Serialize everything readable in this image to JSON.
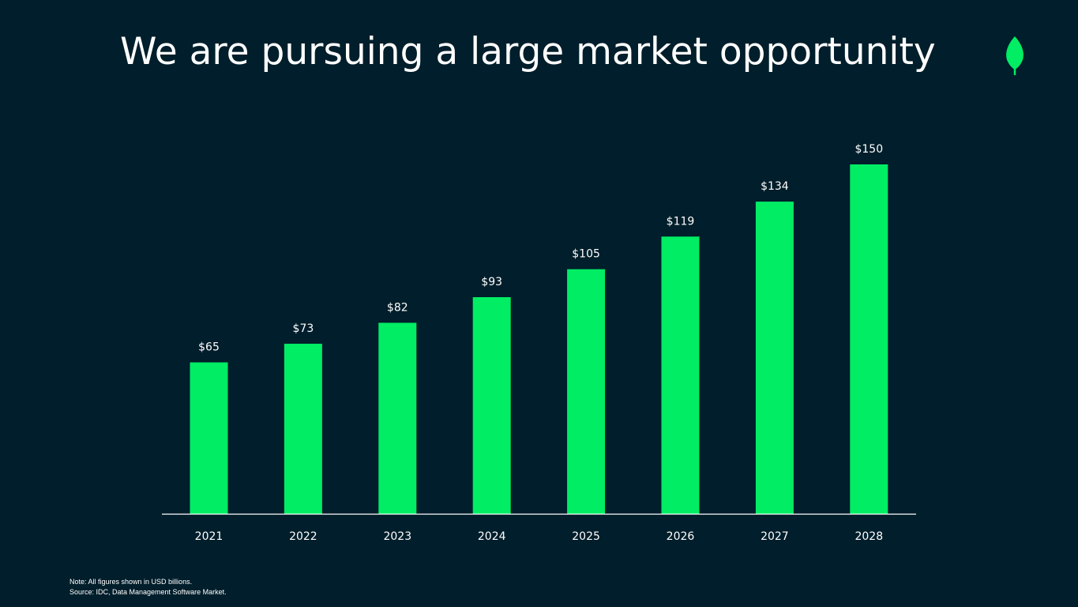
{
  "slide": {
    "title": "We are pursuing a large market opportunity",
    "logo_icon": "leaf-icon",
    "footnote": {
      "note": "Note: All figures shown in USD billions.",
      "source": "Source: IDC, Data Management Software Market."
    }
  },
  "colors": {
    "background": "#001e2b",
    "bar": "#00ed64",
    "text": "#ffffff",
    "leaf": "#00ed64"
  },
  "chart_data": {
    "type": "bar",
    "categories": [
      "2021",
      "2022",
      "2023",
      "2024",
      "2025",
      "2026",
      "2027",
      "2028"
    ],
    "values": [
      65,
      73,
      82,
      93,
      105,
      119,
      134,
      150
    ],
    "value_labels": [
      "$65",
      "$73",
      "$82",
      "$93",
      "$105",
      "$119",
      "$134",
      "$150"
    ],
    "title": "",
    "xlabel": "",
    "ylabel": "",
    "ylim": [
      0,
      150
    ],
    "grid": false,
    "legend": "none"
  }
}
